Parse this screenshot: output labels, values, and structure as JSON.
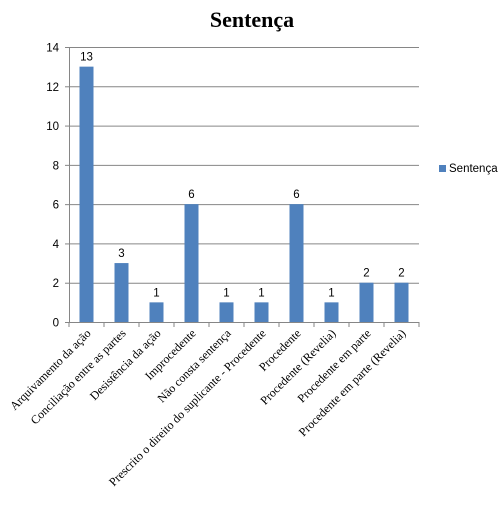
{
  "chart_data": {
    "type": "bar",
    "title": "Sentença",
    "categories": [
      "Arquivamento da ação",
      "Conciliação entre as partes",
      "Desistência da ação",
      "Improcedente",
      "Não consta sentença",
      "Prescrito o direito do suplicante - Procedente",
      "Procedente",
      "Procedente (Revelia)",
      "Procedente em parte",
      "Procedente em parte (Revelia)"
    ],
    "series": [
      {
        "name": "Sentença",
        "values": [
          13,
          3,
          1,
          6,
          1,
          1,
          6,
          1,
          2,
          2
        ]
      }
    ],
    "ylim": [
      0,
      14
    ],
    "yticks": [
      0,
      2,
      4,
      6,
      8,
      10,
      12,
      14
    ],
    "grid": true,
    "legend_position": "right",
    "bar_color": "#4f81bd",
    "grid_color": "#868686"
  }
}
